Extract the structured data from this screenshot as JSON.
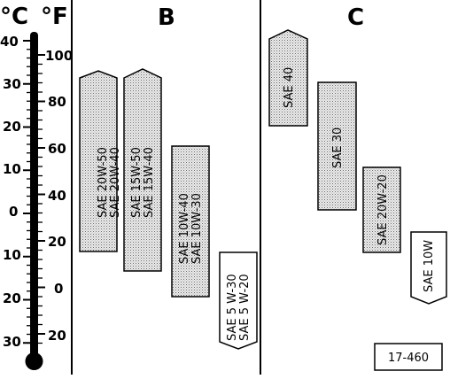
{
  "thermometer": {
    "celsius_unit": "°C",
    "fahrenheit_unit": "°F",
    "celsius_ticks": [
      "40",
      "30",
      "20",
      "10",
      "0",
      "10",
      "20",
      "30"
    ],
    "fahrenheit_ticks": [
      "100",
      "80",
      "60",
      "40",
      "20",
      "0",
      "20"
    ]
  },
  "panel_b": {
    "title": "B",
    "bars": [
      {
        "label_lines": [
          "SAE 20W-50",
          "SAE 20W-40"
        ]
      },
      {
        "label_lines": [
          "SAE 15W-50",
          "SAE 15W-40"
        ]
      },
      {
        "label_lines": [
          "SAE 10W-40",
          "SAE 10W-30"
        ]
      },
      {
        "label_lines": [
          "SAE 5 W-30",
          "SAE 5 W-20"
        ]
      }
    ]
  },
  "panel_c": {
    "title": "C",
    "bars": [
      {
        "label_lines": [
          "SAE 40"
        ]
      },
      {
        "label_lines": [
          "SAE 30"
        ]
      },
      {
        "label_lines": [
          "SAE 20W-20"
        ]
      },
      {
        "label_lines": [
          "SAE 10W"
        ]
      }
    ]
  },
  "reference_number": "17-460"
}
